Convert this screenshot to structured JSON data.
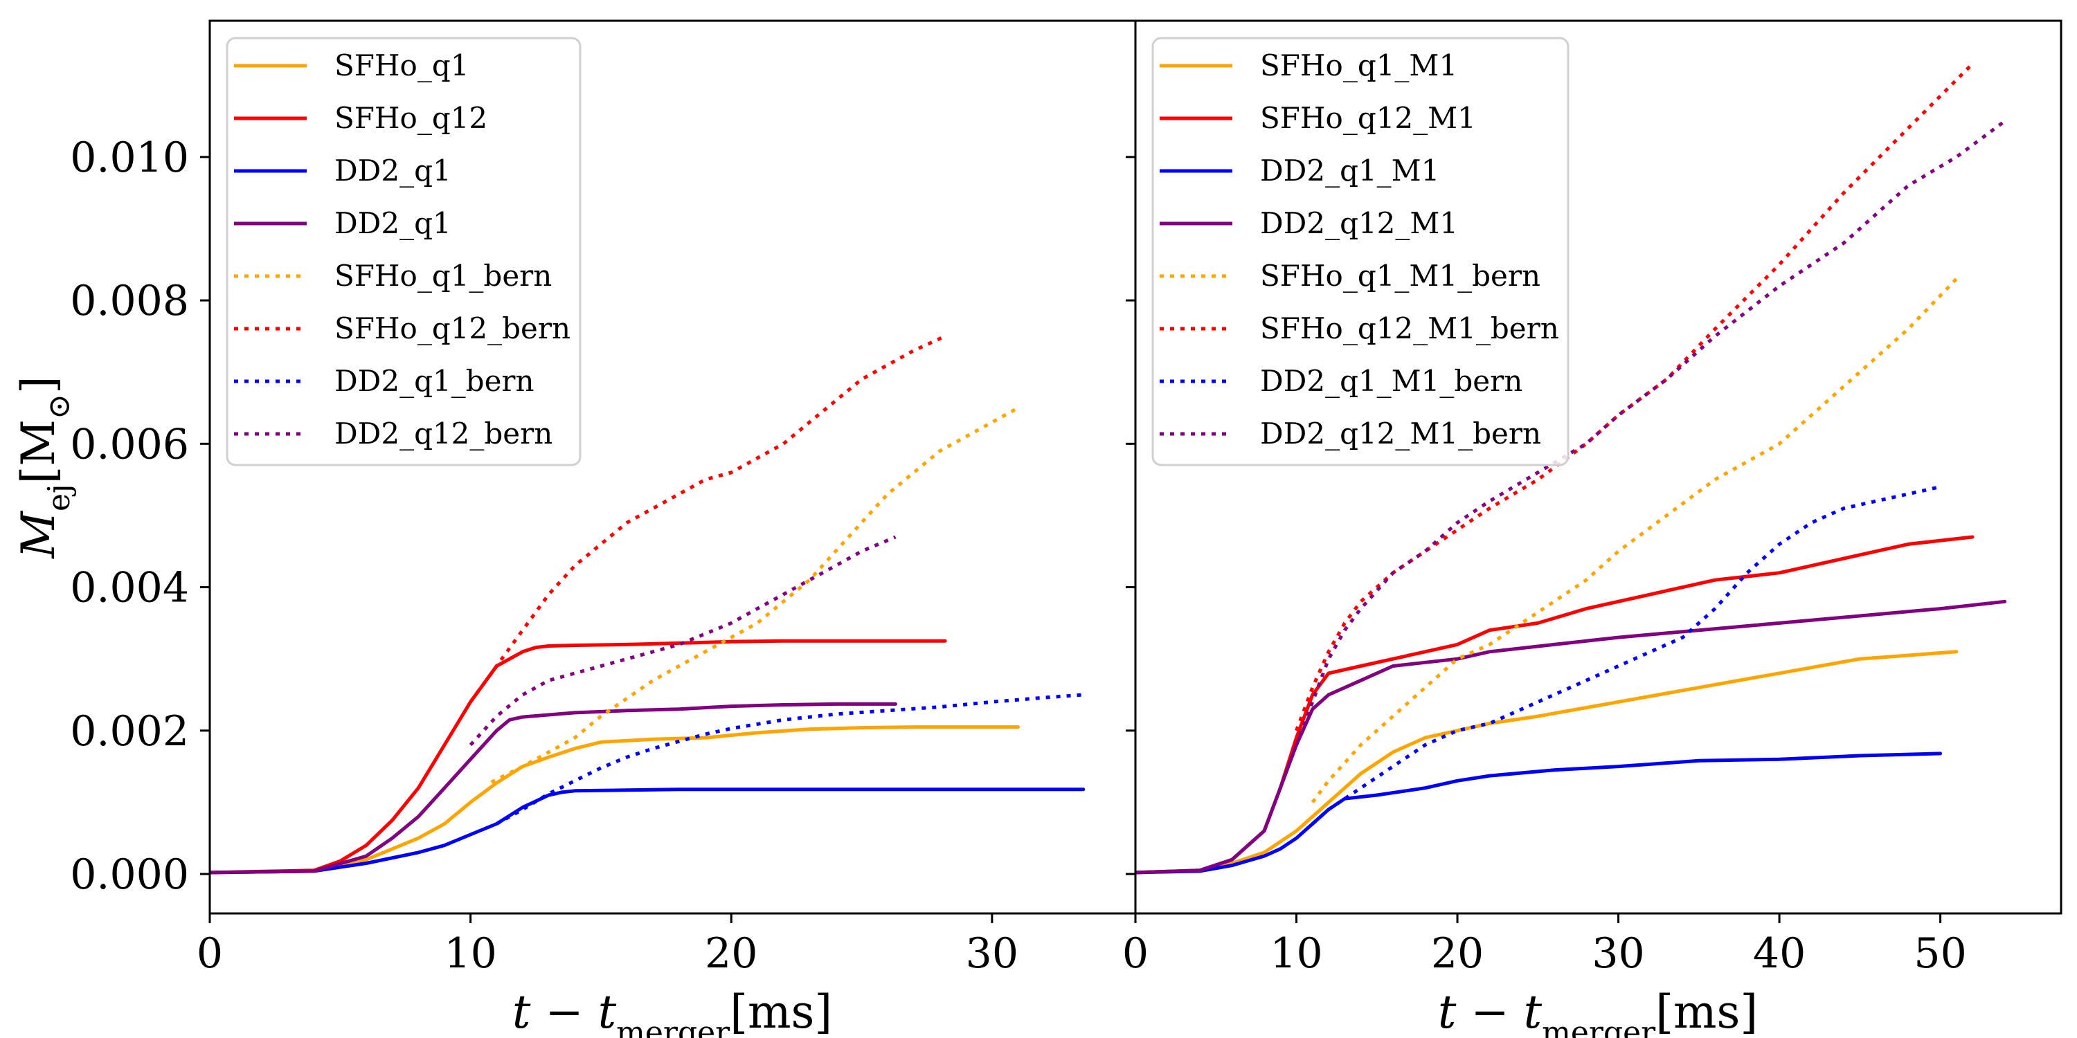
{
  "chart_data": [
    {
      "type": "line",
      "panel": "left",
      "xlabel": "t − t",
      "xlabel_sub": "merger",
      "xlabel_unit": "[ms]",
      "ylabel": "M",
      "ylabel_sub": "ej",
      "ylabel_unit": "[M",
      "ylabel_sun": "⊙",
      "ylabel_close": "]",
      "xlim": [
        0,
        35.5
      ],
      "ylim": [
        -0.00055,
        0.0119
      ],
      "xticks": [
        0,
        10,
        20,
        30
      ],
      "xtick_labels": [
        "0",
        "10",
        "20",
        "30"
      ],
      "yticks": [
        0,
        0.002,
        0.004,
        0.006,
        0.008,
        0.01
      ],
      "ytick_labels": [
        "0.000",
        "0.002",
        "0.004",
        "0.006",
        "0.008",
        "0.010"
      ],
      "legend": "top-left",
      "series": [
        {
          "name": "SFHo_q1",
          "color": "#ffa500",
          "style": "solid",
          "x": [
            0,
            4,
            6,
            8,
            9,
            10,
            11,
            12,
            13,
            14,
            15,
            17,
            19,
            21,
            23,
            25,
            27,
            29,
            31
          ],
          "y": [
            2e-05,
            4e-05,
            0.0002,
            0.0005,
            0.0007,
            0.001,
            0.00127,
            0.0015,
            0.00163,
            0.00175,
            0.00184,
            0.00188,
            0.0019,
            0.00197,
            0.00202,
            0.00204,
            0.00205,
            0.00205,
            0.00205
          ]
        },
        {
          "name": "SFHo_q12",
          "color": "#ff0000",
          "style": "solid",
          "x": [
            0,
            4,
            5,
            6,
            7,
            8,
            9,
            10,
            11,
            12,
            12.5,
            13,
            14,
            16,
            18,
            20,
            22,
            24,
            26,
            28.2
          ],
          "y": [
            2e-05,
            5e-05,
            0.00018,
            0.0004,
            0.00075,
            0.0012,
            0.0018,
            0.0024,
            0.0029,
            0.0031,
            0.00316,
            0.00318,
            0.00319,
            0.0032,
            0.00322,
            0.00324,
            0.00325,
            0.00325,
            0.00325,
            0.00325
          ]
        },
        {
          "name": "DD2_q1",
          "color": "#0000ff",
          "style": "solid",
          "x": [
            0,
            4,
            6,
            8,
            9,
            10,
            11,
            12,
            13,
            13.5,
            14,
            16,
            18,
            20,
            25,
            30,
            33.5
          ],
          "y": [
            2e-05,
            4e-05,
            0.00015,
            0.0003,
            0.0004,
            0.00055,
            0.0007,
            0.00093,
            0.0011,
            0.00114,
            0.00116,
            0.00117,
            0.00118,
            0.00118,
            0.00118,
            0.00118,
            0.00118
          ]
        },
        {
          "name": "DD2_q1",
          "color": "#800080",
          "style": "solid",
          "x": [
            0,
            4,
            6,
            7,
            8,
            9,
            10,
            11,
            11.5,
            12,
            14,
            16,
            18,
            20,
            22,
            24,
            26.3
          ],
          "y": [
            2e-05,
            4e-05,
            0.00025,
            0.0005,
            0.0008,
            0.0012,
            0.0016,
            0.002,
            0.00215,
            0.00219,
            0.00225,
            0.00228,
            0.0023,
            0.00234,
            0.00236,
            0.00237,
            0.00237
          ]
        },
        {
          "name": "SFHo_q1_bern",
          "color": "#ffa500",
          "style": "dotted",
          "x": [
            10.8,
            12,
            13,
            14,
            15,
            16,
            17,
            18,
            19,
            20,
            21,
            22,
            23,
            24,
            25,
            26,
            27,
            28,
            29,
            30,
            31
          ],
          "y": [
            0.00128,
            0.0015,
            0.0017,
            0.0019,
            0.0022,
            0.00245,
            0.0027,
            0.0029,
            0.0031,
            0.0033,
            0.0035,
            0.0038,
            0.0041,
            0.0045,
            0.0049,
            0.0053,
            0.0056,
            0.0059,
            0.0061,
            0.0063,
            0.0065
          ]
        },
        {
          "name": "SFHo_q12_bern",
          "color": "#ff0000",
          "style": "dotted",
          "x": [
            10,
            11,
            12,
            13,
            14,
            15,
            16,
            17,
            18,
            19,
            20,
            21,
            22,
            23,
            24,
            25,
            26,
            27,
            28.2
          ],
          "y": [
            0.0024,
            0.0029,
            0.0034,
            0.0039,
            0.0043,
            0.0046,
            0.0049,
            0.0051,
            0.0053,
            0.0055,
            0.0056,
            0.0058,
            0.006,
            0.0063,
            0.0066,
            0.0069,
            0.0071,
            0.0073,
            0.0075
          ]
        },
        {
          "name": "DD2_q1_bern",
          "color": "#0000ff",
          "style": "dotted",
          "x": [
            11,
            12,
            13,
            14,
            15,
            16,
            17,
            18,
            19,
            20,
            22,
            24,
            26,
            28,
            30,
            32,
            33.5
          ],
          "y": [
            0.0007,
            0.0009,
            0.00112,
            0.0013,
            0.00148,
            0.00163,
            0.00175,
            0.00185,
            0.00195,
            0.00203,
            0.00215,
            0.00223,
            0.00228,
            0.00233,
            0.0024,
            0.00246,
            0.0025
          ]
        },
        {
          "name": "DD2_q12_bern",
          "color": "#800080",
          "style": "dotted",
          "x": [
            10,
            11,
            12,
            13,
            14,
            15,
            16,
            17,
            18,
            19,
            20,
            21,
            22,
            23,
            24,
            25,
            26.3
          ],
          "y": [
            0.0018,
            0.0022,
            0.0025,
            0.0027,
            0.0028,
            0.0029,
            0.003,
            0.0031,
            0.0032,
            0.00335,
            0.0035,
            0.0037,
            0.0039,
            0.0041,
            0.0043,
            0.0045,
            0.0047
          ]
        }
      ]
    },
    {
      "type": "line",
      "panel": "right",
      "xlabel": "t − t",
      "xlabel_sub": "merger",
      "xlabel_unit": "[ms]",
      "xlim": [
        0,
        57.5
      ],
      "ylim": [
        -0.00055,
        0.0119
      ],
      "xticks": [
        0,
        10,
        20,
        30,
        40,
        50
      ],
      "xtick_labels": [
        "0",
        "10",
        "20",
        "30",
        "40",
        "50"
      ],
      "yticks": [
        0,
        0.002,
        0.004,
        0.006,
        0.008,
        0.01
      ],
      "legend": "top-left",
      "series": [
        {
          "name": "SFHo_q1_M1",
          "color": "#ffa500",
          "style": "solid",
          "x": [
            0,
            4,
            6,
            8,
            10,
            12,
            14,
            16,
            18,
            20,
            22,
            25,
            30,
            35,
            40,
            45,
            51
          ],
          "y": [
            2e-05,
            5e-05,
            0.00015,
            0.0003,
            0.0006,
            0.001,
            0.0014,
            0.0017,
            0.0019,
            0.002,
            0.0021,
            0.0022,
            0.0024,
            0.0026,
            0.0028,
            0.003,
            0.0031
          ]
        },
        {
          "name": "SFHo_q12_M1",
          "color": "#ff0000",
          "style": "solid",
          "x": [
            0,
            4,
            6,
            8,
            9,
            10,
            11,
            12,
            14,
            16,
            18,
            20,
            22,
            25,
            28,
            32,
            36,
            40,
            44,
            48,
            52
          ],
          "y": [
            2e-05,
            5e-05,
            0.0002,
            0.0006,
            0.0012,
            0.0019,
            0.0025,
            0.0028,
            0.0029,
            0.003,
            0.0031,
            0.0032,
            0.0034,
            0.0035,
            0.0037,
            0.0039,
            0.0041,
            0.0042,
            0.0044,
            0.0046,
            0.0047
          ]
        },
        {
          "name": "DD2_q1_M1",
          "color": "#0000ff",
          "style": "solid",
          "x": [
            0,
            4,
            6,
            8,
            9,
            10,
            11,
            12,
            13,
            15,
            18,
            20,
            22,
            26,
            30,
            35,
            40,
            45,
            50
          ],
          "y": [
            2e-05,
            4e-05,
            0.00012,
            0.00025,
            0.00035,
            0.0005,
            0.0007,
            0.0009,
            0.00105,
            0.0011,
            0.0012,
            0.0013,
            0.00137,
            0.00145,
            0.0015,
            0.00158,
            0.0016,
            0.00165,
            0.00168
          ]
        },
        {
          "name": "DD2_q12_M1",
          "color": "#800080",
          "style": "solid",
          "x": [
            0,
            4,
            6,
            8,
            9,
            10,
            11,
            12,
            14,
            16,
            18,
            20,
            22,
            26,
            30,
            35,
            40,
            45,
            50,
            54
          ],
          "y": [
            2e-05,
            5e-05,
            0.0002,
            0.0006,
            0.0012,
            0.0018,
            0.0023,
            0.0025,
            0.0027,
            0.0029,
            0.00295,
            0.003,
            0.0031,
            0.0032,
            0.0033,
            0.0034,
            0.0035,
            0.0036,
            0.0037,
            0.0038
          ]
        },
        {
          "name": "SFHo_q1_M1_bern",
          "color": "#ffa500",
          "style": "dotted",
          "x": [
            11,
            12,
            14,
            16,
            18,
            20,
            22,
            24,
            26,
            28,
            30,
            33,
            36,
            40,
            44,
            48,
            51
          ],
          "y": [
            0.001,
            0.0013,
            0.0018,
            0.0022,
            0.0026,
            0.003,
            0.0032,
            0.0035,
            0.0038,
            0.0041,
            0.0045,
            0.005,
            0.0055,
            0.006,
            0.0068,
            0.0076,
            0.0083
          ]
        },
        {
          "name": "SFHo_q12_M1_bern",
          "color": "#ff0000",
          "style": "dotted",
          "x": [
            10,
            11,
            12,
            13,
            14,
            16,
            18,
            20,
            22,
            25,
            28,
            30,
            33,
            36,
            40,
            44,
            48,
            52
          ],
          "y": [
            0.002,
            0.0026,
            0.0031,
            0.0035,
            0.0038,
            0.0042,
            0.0045,
            0.0048,
            0.0051,
            0.0055,
            0.006,
            0.0064,
            0.0069,
            0.0076,
            0.0085,
            0.0095,
            0.0104,
            0.0113
          ]
        },
        {
          "name": "DD2_q1_M1_bern",
          "color": "#0000ff",
          "style": "dotted",
          "x": [
            11,
            12,
            14,
            16,
            18,
            20,
            22,
            24,
            26,
            28,
            30,
            32,
            34,
            36,
            38,
            40,
            42,
            44,
            46,
            48,
            50
          ],
          "y": [
            0.0007,
            0.0009,
            0.0012,
            0.0015,
            0.0018,
            0.002,
            0.0021,
            0.0023,
            0.0025,
            0.0027,
            0.0029,
            0.0031,
            0.0033,
            0.0037,
            0.0042,
            0.0046,
            0.0049,
            0.0051,
            0.0052,
            0.0053,
            0.0054
          ]
        },
        {
          "name": "DD2_q12_M1_bern",
          "color": "#800080",
          "style": "dotted",
          "x": [
            10,
            11,
            12,
            13,
            14,
            16,
            18,
            20,
            22,
            25,
            28,
            30,
            33,
            36,
            40,
            44,
            48,
            51,
            54
          ],
          "y": [
            0.0018,
            0.0024,
            0.003,
            0.0034,
            0.0037,
            0.0042,
            0.0045,
            0.0049,
            0.0052,
            0.0056,
            0.006,
            0.0064,
            0.0069,
            0.0075,
            0.0082,
            0.0088,
            0.0096,
            0.01,
            0.0105
          ]
        }
      ]
    }
  ]
}
